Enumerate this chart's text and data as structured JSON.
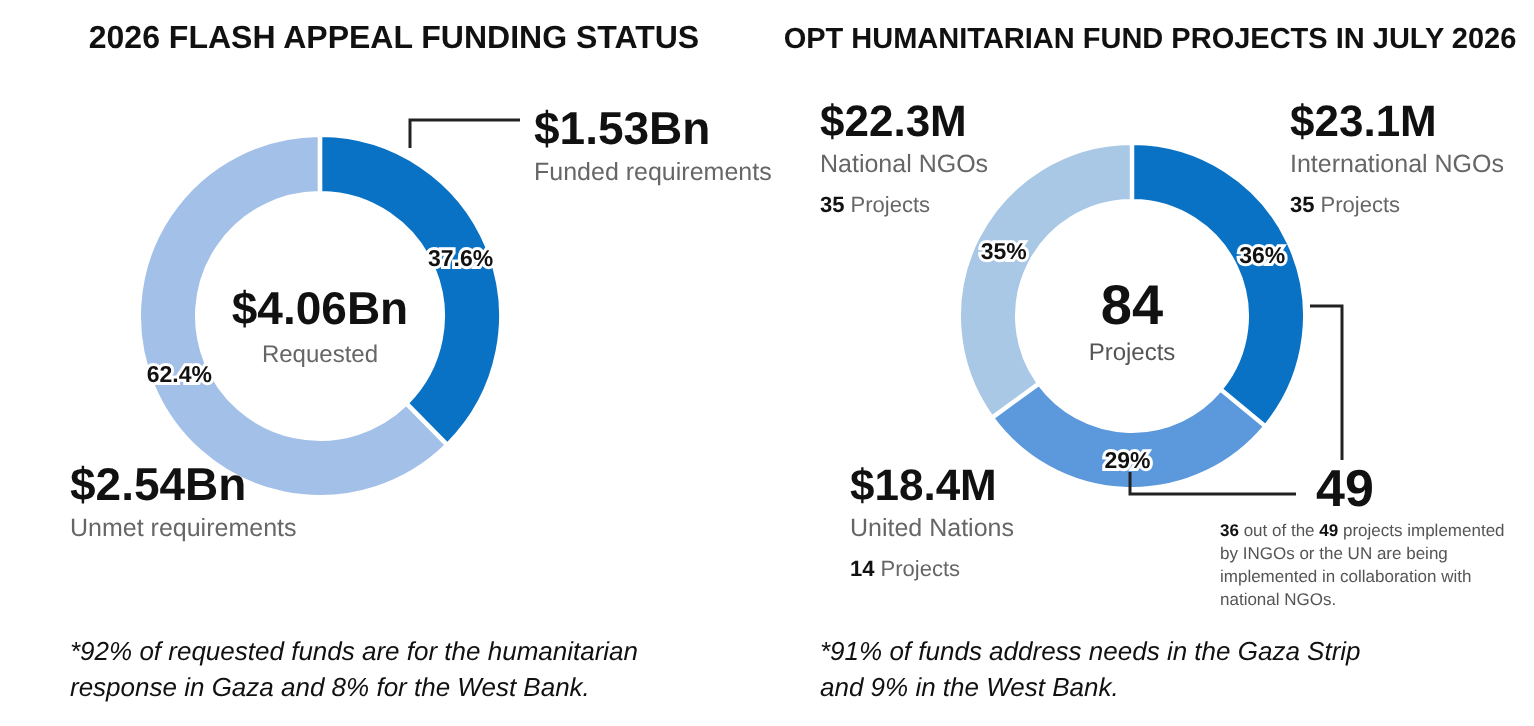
{
  "chart_data": [
    {
      "type": "donut",
      "title": "2026 FLASH APPEAL FUNDING STATUS",
      "categories": [
        "Funded requirements",
        "Unmet requirements"
      ],
      "values": [
        37.6,
        62.4
      ],
      "colors": [
        "#0a72c4",
        "#a3c1e8"
      ],
      "value_labels": [
        "37.6%",
        "62.4%"
      ],
      "annotations": [
        "$4.06Bn",
        "Requested",
        "$1.53Bn",
        "$2.54Bn",
        "*92% of requested funds are for the humanitarian response in Gaza and 8% for the West Bank."
      ]
    },
    {
      "type": "donut",
      "title": "OPT HUMANITARIAN FUND PROJECTS IN JULY 2026",
      "categories": [
        "International NGOs",
        "United Nations",
        "National NGOs"
      ],
      "values": [
        36,
        29,
        35
      ],
      "colors": [
        "#0a72c4",
        "#5b98dc",
        "#a8c8e6"
      ],
      "value_labels": [
        "36%",
        "29%",
        "35%"
      ],
      "annotations": [
        "84",
        "Projects",
        "$23.1M",
        "35 Projects",
        "$18.4M",
        "14 Projects",
        "$22.3M",
        "35 Projects",
        "49",
        "36 out of the 49 projects implemented by INGOs or the UN are being implemented in collaboration with national NGOs.",
        "*91% of funds address needs in the Gaza Strip and 9% in the West Bank."
      ]
    }
  ]
}
